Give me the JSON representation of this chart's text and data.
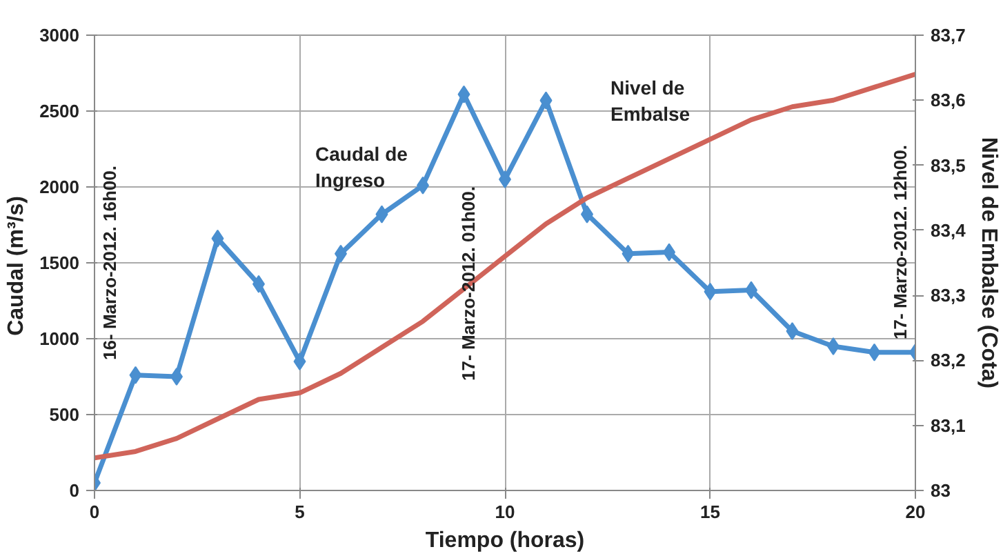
{
  "chart_data": {
    "type": "line",
    "xlabel": "Tiempo (horas)",
    "ylabel": "Caudal  (m³/s)",
    "y2label": "Nivel de Embalse (Cota)",
    "x": [
      0,
      1,
      2,
      3,
      4,
      5,
      6,
      7,
      8,
      9,
      10,
      11,
      12,
      13,
      14,
      15,
      16,
      17,
      18,
      19,
      20
    ],
    "series": [
      {
        "name": "Caudal de Ingreso",
        "color": "#4a8fd0",
        "marker": "diamond",
        "values": [
          50,
          760,
          750,
          1660,
          1360,
          850,
          1560,
          1820,
          2010,
          2610,
          2050,
          2570,
          1820,
          1560,
          1570,
          1310,
          1320,
          1050,
          950,
          910,
          910
        ]
      },
      {
        "name": "Nivel de Embalse",
        "color": "#d0645a",
        "marker": "none",
        "axis": "y2",
        "values": [
          83.05,
          83.06,
          83.08,
          83.11,
          83.14,
          83.15,
          83.18,
          83.22,
          83.26,
          83.31,
          83.36,
          83.41,
          83.45,
          83.48,
          83.51,
          83.54,
          83.57,
          83.59,
          83.6,
          83.62,
          83.64
        ]
      }
    ],
    "xlim": [
      0,
      20
    ],
    "xticks": [
      0,
      5,
      10,
      15,
      20
    ],
    "ylim": [
      0,
      3000
    ],
    "yticks": [
      0,
      500,
      1000,
      1500,
      2000,
      2500,
      3000
    ],
    "y2lim": [
      83,
      83.7
    ],
    "y2ticks": [
      83,
      {
        "value": 83.1,
        "label": "83,1"
      },
      {
        "value": 83.2,
        "label": "83,2"
      },
      {
        "value": 83.3,
        "label": "83,3"
      },
      {
        "value": 83.4,
        "label": "83,4"
      },
      {
        "value": 83.5,
        "label": "83,5"
      },
      {
        "value": 83.6,
        "label": "83,6"
      },
      {
        "value": 83.7,
        "label": "83,7"
      }
    ],
    "grid": true,
    "line_style": "solid",
    "annotations": [
      "16- Marzo-2012. 16h00.",
      "17- Marzo-2012. 01h00.",
      "17- Marzo-2012. 12h00."
    ]
  }
}
